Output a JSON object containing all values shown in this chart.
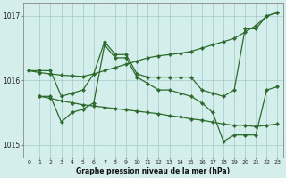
{
  "background_color": "#d4eeeb",
  "grid_color": "#aacfcc",
  "line_color": "#2d6a2d",
  "marker_color": "#2d6a2d",
  "ylabel_min": 1014.8,
  "ylabel_max": 1017.2,
  "yticks": [
    1015,
    1016,
    1017
  ],
  "xlabel_label": "Graphe pression niveau de la mer (hPa)",
  "series": [
    {
      "x": [
        0,
        1,
        2,
        3,
        4,
        5,
        6,
        7,
        8,
        9,
        10,
        11,
        12,
        13,
        14,
        15,
        16,
        17,
        18,
        19,
        20,
        21,
        22,
        23
      ],
      "y": [
        1016.15,
        1016.12,
        1016.1,
        1016.08,
        1016.07,
        1016.06,
        1016.1,
        1016.15,
        1016.2,
        1016.25,
        1016.3,
        1016.35,
        1016.38,
        1016.4,
        1016.42,
        1016.45,
        1016.5,
        1016.55,
        1016.6,
        1016.65,
        1016.75,
        1016.85,
        1017.0,
        1017.05
      ]
    },
    {
      "x": [
        0,
        1,
        2,
        3,
        4,
        5,
        6,
        7,
        8,
        9,
        10,
        11,
        12,
        13,
        14,
        15,
        16,
        17,
        18,
        19,
        20,
        21,
        22,
        23
      ],
      "y": [
        1016.15,
        1016.15,
        1016.15,
        1015.75,
        1015.8,
        1015.85,
        1016.1,
        1016.6,
        1016.4,
        1016.4,
        1016.1,
        1016.05,
        1016.05,
        1016.05,
        1016.05,
        1016.05,
        1015.85,
        1015.8,
        1015.75,
        1015.85,
        1016.8,
        1016.8,
        1017.0,
        1017.05
      ]
    },
    {
      "x": [
        1,
        2,
        3,
        4,
        5,
        6,
        7,
        8,
        9,
        10,
        11,
        12,
        13,
        14,
        15,
        16,
        17,
        18,
        19,
        20,
        21,
        22,
        23
      ],
      "y": [
        1015.75,
        1015.72,
        1015.68,
        1015.65,
        1015.62,
        1015.6,
        1015.58,
        1015.56,
        1015.54,
        1015.52,
        1015.5,
        1015.48,
        1015.45,
        1015.43,
        1015.4,
        1015.38,
        1015.35,
        1015.32,
        1015.3,
        1015.3,
        1015.28,
        1015.3,
        1015.32
      ]
    },
    {
      "x": [
        1,
        2,
        3,
        4,
        5,
        6,
        7,
        8,
        9,
        10,
        11,
        12,
        13,
        14,
        15,
        16,
        17,
        18,
        19,
        20,
        21,
        22,
        23
      ],
      "y": [
        1015.75,
        1015.75,
        1015.35,
        1015.5,
        1015.55,
        1015.65,
        1016.55,
        1016.35,
        1016.35,
        1016.05,
        1015.95,
        1015.85,
        1015.85,
        1015.8,
        1015.75,
        1015.65,
        1015.5,
        1015.05,
        1015.15,
        1015.15,
        1015.15,
        1015.85,
        1015.9
      ]
    }
  ]
}
